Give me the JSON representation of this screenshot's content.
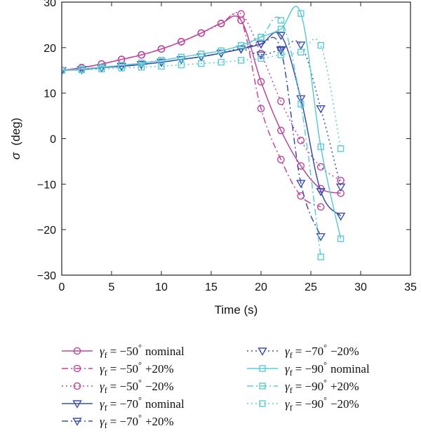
{
  "chart_data": {
    "type": "line",
    "xlabel": "Time (s)",
    "ylabel_symbol": "σ",
    "ylabel_unit": "(deg)",
    "xlim": [
      0,
      35
    ],
    "ylim": [
      -30,
      30
    ],
    "xticks": [
      0,
      5,
      10,
      15,
      20,
      25,
      30,
      35
    ],
    "yticks": [
      30,
      20,
      10,
      0,
      -10,
      -20,
      -30
    ],
    "grid": false,
    "legend_position": "bottom",
    "series": [
      {
        "name": "γf = −50° nominal",
        "symbol": "γ",
        "subscript": "f",
        "angle": "= −50",
        "degree": "°",
        "suffix": "nominal",
        "color": "#c0449c",
        "dash": "solid",
        "marker": "circle",
        "x": [
          0,
          2,
          4,
          6,
          8,
          10,
          12,
          14,
          16,
          18,
          20,
          22,
          24,
          26,
          28
        ],
        "y": [
          15,
          15.6,
          16.4,
          17.4,
          18.4,
          19.7,
          21.3,
          23.2,
          25.3,
          26,
          12.5,
          1.8,
          -6,
          -11,
          -12
        ]
      },
      {
        "name": "γf = −50° +20%",
        "symbol": "γ",
        "subscript": "f",
        "angle": "= −50",
        "degree": "°",
        "suffix": "+20%",
        "color": "#c0449c",
        "dash": "dashdot",
        "marker": "circle",
        "x": [
          0,
          2,
          4,
          6,
          8,
          10,
          12,
          14,
          16,
          18,
          20,
          22,
          24,
          26
        ],
        "y": [
          15,
          15.6,
          16.4,
          17.4,
          18.4,
          19.7,
          21.3,
          23.2,
          25.3,
          26,
          6.6,
          -4.6,
          -12.6,
          -15
        ]
      },
      {
        "name": "γf = −50° −20%",
        "symbol": "γ",
        "subscript": "f",
        "angle": "= −50",
        "degree": "°",
        "suffix": "−20%",
        "color": "#c0449c",
        "dash": "dotted",
        "marker": "circle",
        "x": [
          0,
          2,
          4,
          6,
          8,
          10,
          12,
          14,
          16,
          18,
          20,
          22,
          24,
          26,
          28
        ],
        "y": [
          15,
          15.6,
          16.4,
          17.4,
          18.4,
          19.7,
          21.3,
          23.2,
          25.3,
          27.4,
          18.7,
          8.2,
          -0.4,
          -6.2,
          -9.2
        ]
      },
      {
        "name": "γf = −70° nominal",
        "symbol": "γ",
        "subscript": "f",
        "angle": "= −70",
        "degree": "°",
        "suffix": "nominal",
        "color": "#3a4ea8",
        "dash": "solid",
        "marker": "triangle",
        "x": [
          0,
          2,
          4,
          6,
          8,
          10,
          12,
          14,
          16,
          18,
          20,
          22,
          24,
          26,
          28
        ],
        "y": [
          15,
          15.2,
          15.6,
          15.9,
          16.3,
          16.8,
          17.4,
          18,
          18.8,
          19.7,
          20.8,
          22.7,
          8.8,
          -11.6,
          -17
        ]
      },
      {
        "name": "γf = −70° +20%",
        "symbol": "γ",
        "subscript": "f",
        "angle": "= −70",
        "degree": "°",
        "suffix": "+20%",
        "color": "#3a4ea8",
        "dash": "dashdot",
        "marker": "triangle",
        "x": [
          0,
          2,
          4,
          6,
          8,
          10,
          12,
          14,
          16,
          18,
          20,
          22,
          24,
          26
        ],
        "y": [
          15,
          15.2,
          15.6,
          15.9,
          16.3,
          16.8,
          17.4,
          18,
          18.8,
          19.7,
          20.8,
          19.4,
          -9.8,
          -21.5
        ]
      },
      {
        "name": "γf = −70° −20%",
        "symbol": "γ",
        "subscript": "f",
        "angle": "= −70",
        "degree": "°",
        "suffix": "−20%",
        "color": "#3a4ea8",
        "dash": "dotted",
        "marker": "triangle",
        "x": [
          0,
          2,
          4,
          6,
          8,
          10,
          12,
          14,
          16,
          18,
          20,
          22,
          24,
          26,
          28
        ],
        "y": [
          15,
          15.2,
          15.6,
          15.9,
          16.3,
          16.8,
          17.4,
          18,
          18.8,
          19.7,
          18.4,
          19.6,
          20.6,
          6.6,
          -10.6
        ]
      },
      {
        "name": "γf = −90° nominal",
        "symbol": "γ",
        "subscript": "f",
        "angle": "= −90",
        "degree": "°",
        "suffix": "nominal",
        "color": "#5ccbd6",
        "dash": "solid",
        "marker": "square",
        "x": [
          0,
          2,
          4,
          6,
          8,
          10,
          12,
          14,
          16,
          18,
          20,
          22,
          24,
          26,
          28
        ],
        "y": [
          15,
          15.3,
          15.7,
          16.1,
          16.6,
          17.2,
          17.9,
          18.6,
          19.3,
          20.5,
          22.3,
          24.1,
          27.5,
          -1.8,
          -22
        ]
      },
      {
        "name": "γf = −90° +20%",
        "symbol": "γ",
        "subscript": "f",
        "angle": "= −90",
        "degree": "°",
        "suffix": "+20%",
        "color": "#5ccbd6",
        "dash": "dashdot",
        "marker": "square",
        "x": [
          0,
          2,
          4,
          6,
          8,
          10,
          12,
          14,
          16,
          18,
          20,
          22,
          24,
          26
        ],
        "y": [
          15,
          15.3,
          15.7,
          16.1,
          16.6,
          17.2,
          17.9,
          18.6,
          19.3,
          20.5,
          22.3,
          26,
          7.6,
          -26
        ]
      },
      {
        "name": "γf = −90° −20%",
        "symbol": "γ",
        "subscript": "f",
        "angle": "= −90",
        "degree": "°",
        "suffix": "−20%",
        "color": "#5ccbd6",
        "dash": "dotted",
        "marker": "square",
        "x": [
          0,
          2,
          4,
          6,
          8,
          10,
          12,
          14,
          16,
          18,
          20,
          22,
          24,
          26,
          28
        ],
        "y": [
          15,
          15.1,
          15.3,
          15.5,
          15.7,
          15.9,
          16.2,
          16.5,
          16.8,
          17.2,
          17.6,
          18.4,
          19,
          20.5,
          -2.2
        ]
      }
    ]
  }
}
